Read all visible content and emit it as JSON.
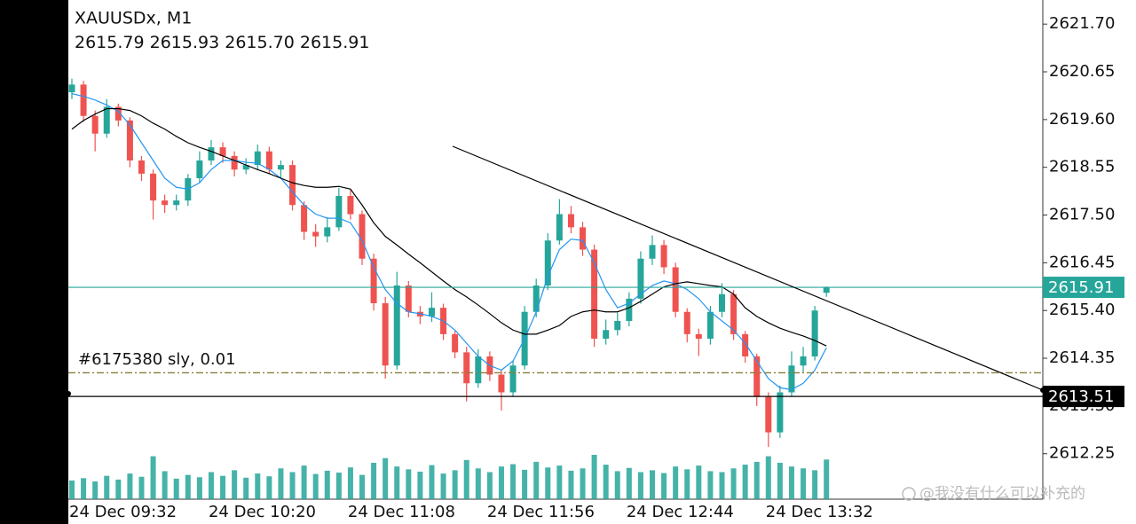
{
  "chart_data": {
    "type": "candlestick",
    "symbol": "XAUUSDx, M1",
    "last_bar_labels": [
      "2615.79",
      "2615.93",
      "2615.70",
      "2615.91"
    ],
    "categories": [
      "24 Dec 09:32",
      null,
      null,
      null,
      null,
      null,
      null,
      null,
      null,
      null,
      null,
      null,
      "24 Dec 10:20",
      null,
      null,
      null,
      null,
      null,
      null,
      null,
      null,
      null,
      null,
      null,
      "24 Dec 11:08",
      null,
      null,
      null,
      null,
      null,
      null,
      null,
      null,
      null,
      null,
      null,
      "24 Dec 11:56",
      null,
      null,
      null,
      null,
      null,
      null,
      null,
      null,
      null,
      null,
      null,
      "24 Dec 12:44",
      null,
      null,
      null,
      null,
      null,
      null,
      null,
      null,
      null,
      null,
      null,
      "24 Dec 13:32",
      null,
      null,
      null,
      null,
      null
    ],
    "open": [
      2620.2,
      2620.37,
      2619.68,
      2619.29,
      2619.88,
      2619.58,
      2618.7,
      2618.41,
      2617.82,
      2617.72,
      2617.82,
      2618.31,
      2618.7,
      2618.99,
      2618.8,
      2618.5,
      2618.6,
      2618.9,
      2618.5,
      2618.6,
      2617.72,
      2617.13,
      2617.03,
      2617.23,
      2617.92,
      2617.52,
      2616.54,
      2615.56,
      2614.19,
      2615.95,
      2615.37,
      2615.27,
      2615.46,
      2614.88,
      2614.48,
      2613.8,
      2614.39,
      2613.99,
      2613.6,
      2614.19,
      2615.37,
      2615.95,
      2616.94,
      2617.52,
      2617.23,
      2616.74,
      2614.78,
      2614.97,
      2615.17,
      2615.66,
      2616.54,
      2616.84,
      2616.35,
      2615.37,
      2614.88,
      2614.78,
      2615.37,
      2615.76,
      2614.88,
      2614.39,
      2613.5,
      2612.72,
      2613.6,
      2614.19,
      2614.39,
      2615.79
    ],
    "high": [
      2620.5,
      2620.45,
      2619.8,
      2620.05,
      2619.95,
      2619.65,
      2618.8,
      2618.5,
      2617.95,
      2617.95,
      2618.4,
      2618.9,
      2619.15,
      2619.1,
      2618.9,
      2618.75,
      2619.05,
      2619.0,
      2618.7,
      2618.7,
      2617.8,
      2617.3,
      2617.45,
      2618.1,
      2618.05,
      2617.6,
      2616.65,
      2615.7,
      2616.25,
      2616.05,
      2615.5,
      2615.8,
      2615.55,
      2614.95,
      2614.6,
      2614.55,
      2614.5,
      2614.1,
      2614.3,
      2615.5,
      2616.1,
      2617.1,
      2617.85,
      2617.7,
      2617.35,
      2616.85,
      2615.2,
      2615.35,
      2615.8,
      2616.7,
      2617.05,
      2616.95,
      2616.45,
      2615.45,
      2615.0,
      2615.5,
      2616.0,
      2615.85,
      2614.95,
      2614.45,
      2613.6,
      2613.75,
      2614.5,
      2614.6,
      2615.5,
      2615.93
    ],
    "low": [
      2620.05,
      2619.55,
      2618.9,
      2619.2,
      2619.45,
      2618.55,
      2618.25,
      2617.4,
      2617.55,
      2617.6,
      2617.7,
      2618.2,
      2618.6,
      2618.65,
      2618.35,
      2618.4,
      2618.5,
      2618.4,
      2618.3,
      2617.6,
      2616.95,
      2616.8,
      2616.9,
      2617.15,
      2617.4,
      2616.4,
      2615.4,
      2613.9,
      2614.1,
      2615.25,
      2615.1,
      2615.15,
      2614.75,
      2614.35,
      2613.4,
      2613.7,
      2613.85,
      2613.2,
      2613.5,
      2614.1,
      2615.25,
      2615.85,
      2616.85,
      2617.1,
      2616.6,
      2614.6,
      2614.65,
      2614.85,
      2615.05,
      2615.55,
      2616.4,
      2616.2,
      2615.25,
      2614.7,
      2614.4,
      2614.65,
      2615.25,
      2614.75,
      2614.25,
      2613.3,
      2612.4,
      2612.6,
      2613.5,
      2614.05,
      2614.3,
      2615.7
    ],
    "close": [
      2620.37,
      2619.68,
      2619.29,
      2619.88,
      2619.58,
      2618.7,
      2618.41,
      2617.82,
      2617.72,
      2617.82,
      2618.31,
      2618.7,
      2618.99,
      2618.8,
      2618.5,
      2618.6,
      2618.9,
      2618.5,
      2618.6,
      2617.72,
      2617.13,
      2617.03,
      2617.23,
      2617.92,
      2617.52,
      2616.54,
      2615.56,
      2614.19,
      2615.95,
      2615.37,
      2615.27,
      2615.46,
      2614.88,
      2614.48,
      2613.8,
      2614.39,
      2613.99,
      2613.6,
      2614.19,
      2615.37,
      2615.95,
      2616.94,
      2617.52,
      2617.23,
      2616.74,
      2614.78,
      2614.97,
      2615.17,
      2615.66,
      2616.54,
      2616.84,
      2616.35,
      2615.37,
      2614.88,
      2614.78,
      2615.37,
      2615.76,
      2614.88,
      2614.39,
      2613.5,
      2612.72,
      2613.6,
      2614.19,
      2614.39,
      2615.4,
      2615.91
    ],
    "volume": [
      40,
      45,
      38,
      50,
      42,
      55,
      48,
      92,
      60,
      44,
      52,
      47,
      58,
      50,
      62,
      46,
      55,
      49,
      66,
      58,
      72,
      54,
      61,
      57,
      68,
      52,
      78,
      88,
      70,
      64,
      59,
      73,
      55,
      62,
      84,
      66,
      58,
      70,
      75,
      63,
      80,
      68,
      72,
      61,
      66,
      95,
      74,
      60,
      67,
      58,
      62,
      56,
      70,
      64,
      72,
      60,
      58,
      66,
      74,
      80,
      92,
      78,
      70,
      66,
      62,
      85
    ],
    "up_color": "#26a69a",
    "down_color": "#ef5350",
    "volume_color": "#26a69a",
    "moving_averages": [
      {
        "color": "#2196f3",
        "values": [
          2620.17,
          2620.11,
          2620.03,
          2619.92,
          2619.78,
          2619.48,
          2619.09,
          2618.7,
          2618.31,
          2618.11,
          2618.07,
          2618.21,
          2618.5,
          2618.7,
          2618.7,
          2618.66,
          2618.64,
          2618.5,
          2618.31,
          2618.01,
          2617.72,
          2617.52,
          2617.43,
          2617.43,
          2617.33,
          2616.94,
          2616.35,
          2615.86,
          2615.56,
          2615.37,
          2615.33,
          2615.27,
          2615.17,
          2614.97,
          2614.68,
          2614.39,
          2614.19,
          2614.09,
          2614.29,
          2614.78,
          2615.37,
          2616.15,
          2616.74,
          2616.97,
          2616.94,
          2616.45,
          2615.86,
          2615.46,
          2615.56,
          2615.76,
          2615.95,
          2616.05,
          2615.99,
          2615.86,
          2615.66,
          2615.37,
          2615.17,
          2614.97,
          2614.68,
          2614.29,
          2613.9,
          2613.7,
          2613.66,
          2613.8,
          2614.09,
          2614.58
        ]
      },
      {
        "color": "#000000",
        "values": [
          2619.39,
          2619.58,
          2619.72,
          2619.84,
          2619.84,
          2619.8,
          2619.68,
          2619.52,
          2619.39,
          2619.23,
          2619.09,
          2618.99,
          2618.9,
          2618.8,
          2618.7,
          2618.6,
          2618.5,
          2618.41,
          2618.31,
          2618.21,
          2618.15,
          2618.11,
          2618.11,
          2618.13,
          2618.07,
          2617.72,
          2617.33,
          2617.03,
          2616.84,
          2616.64,
          2616.45,
          2616.25,
          2616.05,
          2615.86,
          2615.7,
          2615.52,
          2615.33,
          2615.13,
          2614.97,
          2614.88,
          2614.88,
          2614.97,
          2615.07,
          2615.27,
          2615.37,
          2615.41,
          2615.37,
          2615.37,
          2615.46,
          2615.6,
          2615.76,
          2615.92,
          2615.99,
          2616.03,
          2615.99,
          2615.95,
          2615.92,
          2615.76,
          2615.46,
          2615.27,
          2615.13,
          2615.01,
          2614.92,
          2614.84,
          2614.74,
          2614.62
        ]
      }
    ],
    "ylim": [
      2611.25,
      2622.23
    ],
    "yticks": [
      {
        "value": 2621.7,
        "label": "2621.70"
      },
      {
        "value": 2620.65,
        "label": "2620.65"
      },
      {
        "value": 2619.6,
        "label": "2619.60"
      },
      {
        "value": 2618.55,
        "label": "2618.55"
      },
      {
        "value": 2617.5,
        "label": "2617.50"
      },
      {
        "value": 2616.45,
        "label": "2616.45"
      },
      {
        "value": 2615.4,
        "label": "2615.40"
      },
      {
        "value": 2614.35,
        "label": "2614.35"
      },
      {
        "value": 2613.3,
        "label": "2613.30"
      },
      {
        "value": 2612.25,
        "label": "2612.25"
      }
    ],
    "price_line": {
      "value": 2615.91,
      "color": "#26a69a"
    },
    "level_line": {
      "value": 2613.51,
      "color": "#000000"
    },
    "order_line": {
      "value": 2614.03,
      "label": "#6175380 sly, 0.01",
      "color": "#8b7d3a"
    },
    "watermark": "@我没有什么可以补充的"
  }
}
